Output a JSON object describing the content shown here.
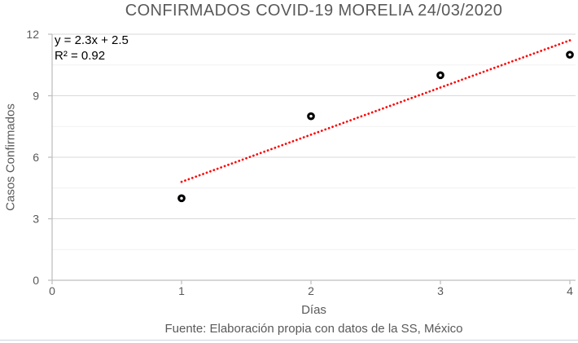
{
  "chart_data": {
    "type": "scatter",
    "title": "CONFIRMADOS COVID-19 MORELIA 24/03/2020",
    "xlabel": "Días",
    "ylabel": "Casos Confirmados",
    "source_note": "Fuente: Elaboración propia con datos de la SS, México",
    "x": [
      1,
      2,
      3,
      4
    ],
    "y": [
      4,
      8,
      10,
      11
    ],
    "xlim": [
      0,
      4
    ],
    "ylim": [
      0,
      12
    ],
    "x_ticks": [
      0,
      1,
      2,
      3,
      4
    ],
    "y_ticks": [
      0,
      3,
      6,
      9,
      12
    ],
    "y_minor_interval": 1.5,
    "grid": "horizontal-only, major and minor, no vertical gridlines",
    "legend": "none",
    "marker": {
      "shape": "open-circle-ring",
      "color": "#000000",
      "fill": "#ffffff"
    },
    "trendline": {
      "slope": 2.3,
      "intercept": 2.5,
      "x_start": 1,
      "x_end": 4,
      "equation_label": "y = 2.3x + 2.5",
      "r2_label": "R² = 0.92",
      "color": "#ff0000",
      "style": "dotted"
    },
    "colors": {
      "title_text": "#595959",
      "axis_text": "#595959",
      "axis_line": "#bfbfbf",
      "gridline_major": "#d9d9d9",
      "gridline_minor": "#f1f1f1",
      "equation_text": "#000000"
    }
  }
}
